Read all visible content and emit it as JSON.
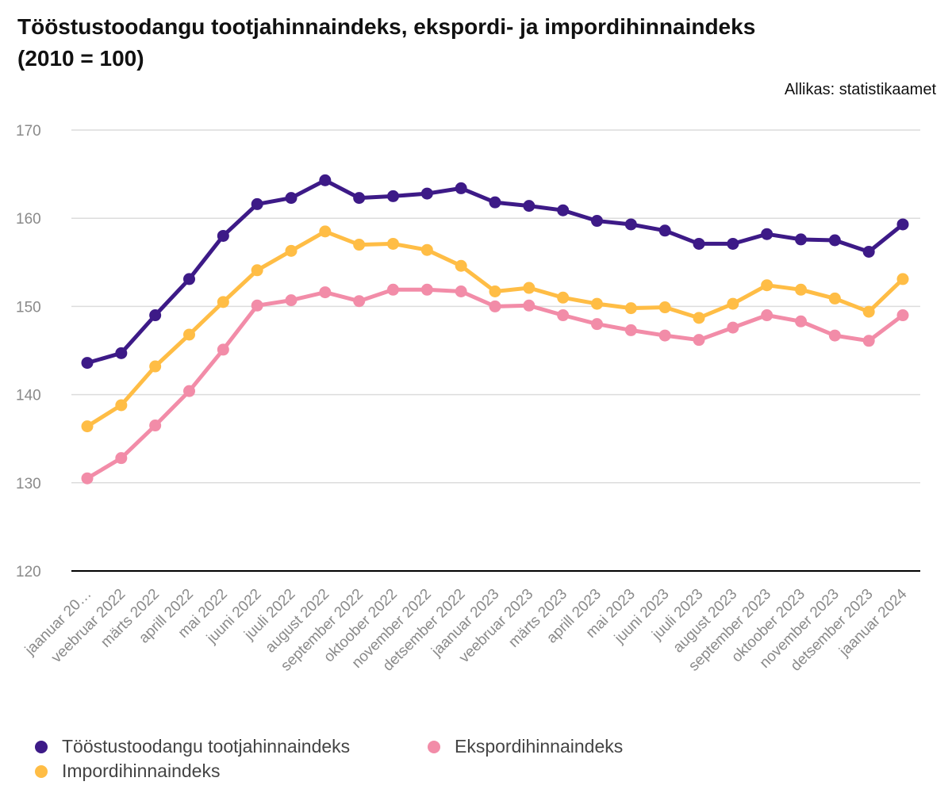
{
  "title_line1": "Tööstustoodangu tootjahinnaindeks, ekspordi- ja impordihinnaindeks",
  "title_line2": "(2010 = 100)",
  "source": "Allikas: statistikaamet",
  "chart_data": {
    "type": "line",
    "categories": [
      "jaanuar 20…",
      "veebruar 2022",
      "märts 2022",
      "aprill 2022",
      "mai 2022",
      "juuni 2022",
      "juuli 2022",
      "august 2022",
      "september 2022",
      "oktoober 2022",
      "november 2022",
      "detsember 2022",
      "jaanuar 2023",
      "veebruar 2023",
      "märts 2023",
      "aprill 2023",
      "mai 2023",
      "juuni 2023",
      "juuli 2023",
      "august 2023",
      "september 2023",
      "oktoober 2023",
      "november 2023",
      "detsember 2023",
      "jaanuar 2024"
    ],
    "yticks": [
      120,
      130,
      140,
      150,
      160,
      170
    ],
    "ylim": [
      120,
      170
    ],
    "grid": true,
    "legend_position": "bottom",
    "series": [
      {
        "name": "Tööstustoodangu tootjahinnaindeks",
        "color": "#3d1a87",
        "values": [
          143.6,
          144.7,
          149.0,
          153.1,
          158.0,
          161.6,
          162.3,
          164.3,
          162.3,
          162.5,
          162.8,
          163.4,
          161.8,
          161.4,
          160.9,
          159.7,
          159.3,
          158.6,
          157.1,
          157.1,
          158.2,
          157.6,
          157.5,
          156.2,
          159.3
        ]
      },
      {
        "name": "Impordihinnaindeks",
        "color": "#ffbd45",
        "values": [
          136.4,
          138.8,
          143.2,
          146.8,
          150.5,
          154.1,
          156.3,
          158.5,
          157.0,
          157.1,
          156.4,
          154.6,
          151.7,
          152.1,
          151.0,
          150.3,
          149.8,
          149.9,
          148.7,
          150.3,
          152.4,
          151.9,
          150.9,
          149.4,
          153.1
        ]
      },
      {
        "name": "Ekspordihinnaindeks",
        "color": "#f28ca8",
        "values": [
          130.5,
          132.8,
          136.5,
          140.4,
          145.1,
          150.1,
          150.7,
          151.6,
          150.6,
          151.9,
          151.9,
          151.7,
          150.0,
          150.1,
          149.0,
          148.0,
          147.3,
          146.7,
          146.2,
          147.6,
          149.0,
          148.3,
          146.7,
          146.1,
          149.0
        ]
      }
    ]
  }
}
